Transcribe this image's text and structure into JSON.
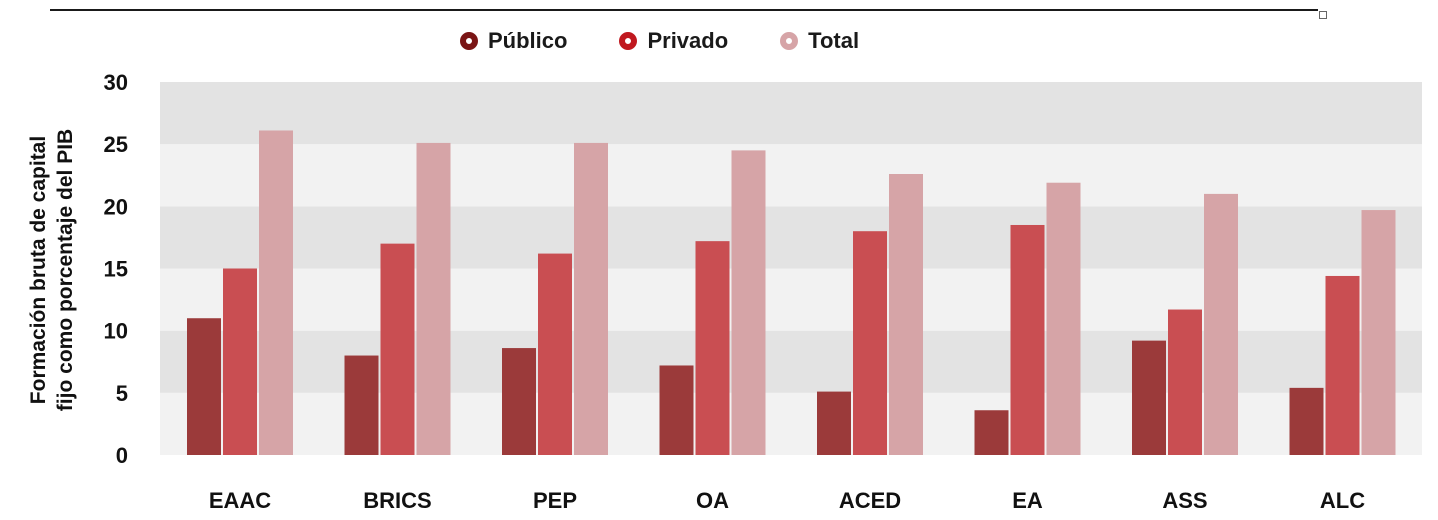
{
  "chart_data": {
    "type": "bar",
    "title": "",
    "ylabel_lines": [
      "Formación bruta de capital",
      "fijo como porcentaje del PIB"
    ],
    "xlabel": "",
    "ylim": [
      0,
      30
    ],
    "yticks": [
      "0",
      "5",
      "10",
      "15",
      "20",
      "25",
      "30"
    ],
    "grid": "horizontal alternating bands",
    "legend_position": "top-center",
    "categories": [
      "EAAC",
      "BRICS",
      "PEP",
      "OA",
      "ACED",
      "EA",
      "ASS",
      "ALC"
    ],
    "series": [
      {
        "name": "Público",
        "color": "#9b3a3a",
        "values": [
          11.0,
          8.0,
          8.6,
          7.2,
          5.1,
          3.6,
          9.2,
          5.4
        ]
      },
      {
        "name": "Privado",
        "color": "#c94e52",
        "values": [
          15.0,
          17.0,
          16.2,
          17.2,
          18.0,
          18.5,
          11.7,
          14.4
        ]
      },
      {
        "name": "Total",
        "color": "#d6a4a7",
        "values": [
          26.1,
          25.1,
          25.1,
          24.5,
          22.6,
          21.9,
          21.0,
          19.7
        ]
      }
    ],
    "legend_ring_colors": [
      "#7a1515",
      "#c0181f",
      "#d6a4a7"
    ],
    "band_colors": [
      "#f2f2f2",
      "#e3e3e3"
    ]
  }
}
